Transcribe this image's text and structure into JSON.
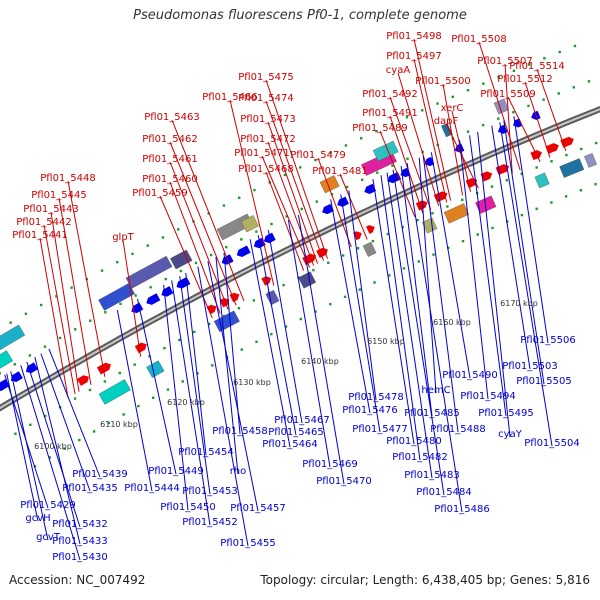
{
  "title": "Pseudomonas fluorescens Pf0-1, complete genome",
  "footer": {
    "accession": "Accession: NC_007492",
    "summary": "Topology: circular; Length: 6,438,405 bp; Genes: 5,816"
  },
  "colors": {
    "forward_strand": "#ee0000",
    "reverse_strand": "#0000ee",
    "backbone": "#888888",
    "top_label": "#cc0000",
    "bottom_label": "#0000cc"
  },
  "ticks": [
    "6100 kbp",
    "6110 kbp",
    "6120 kbp",
    "6130 kbp",
    "6140 kbp",
    "6150 kbp",
    "6160 kbp",
    "6170 kbp"
  ],
  "top_labels": [
    "Pfl01_5441",
    "Pfl01_5442",
    "Pfl01_5443",
    "Pfl01_5445",
    "Pfl01_5448",
    "glpT",
    "Pfl01_5459",
    "Pfl01_5460",
    "Pfl01_5461",
    "Pfl01_5462",
    "Pfl01_5463",
    "Pfl01_5466",
    "Pfl01_5468",
    "Pfl01_5471",
    "Pfl01_5472",
    "Pfl01_5473",
    "Pfl01_5474",
    "Pfl01_5475",
    "Pfl01_5479",
    "Pfl01_5481",
    "Pfl01_5489",
    "Pfl01_5491",
    "Pfl01_5492",
    "cyaA",
    "Pfl01_5497",
    "Pfl01_5498",
    "Pfl01_5500",
    "xerC",
    "dapF",
    "Pfl01_5507",
    "Pfl01_5508",
    "Pfl01_5509",
    "Pfl01_5512",
    "Pfl01_5514"
  ],
  "bottom_labels": [
    "Pfl01_5429",
    "gcvH",
    "gcvT",
    "Pfl01_5430",
    "Pfl01_5432",
    "Pfl01_5433",
    "Pfl01_5435",
    "Pfl01_5439",
    "Pfl01_5444",
    "Pfl01_5449",
    "Pfl01_5450",
    "Pfl01_5452",
    "Pfl01_5453",
    "Pfl01_5454",
    "Pfl01_5455",
    "Pfl01_5457",
    "rho",
    "Pfl01_5458",
    "Pfl01_5464",
    "Pfl01_5465",
    "Pfl01_5467",
    "Pfl01_5469",
    "Pfl01_5470",
    "Pfl01_5476",
    "Pfl01_5477",
    "Pfl01_5478",
    "Pfl01_5480",
    "Pfl01_5482",
    "Pfl01_5483",
    "Pfl01_5484",
    "Pfl01_5485",
    "Pfl01_5486",
    "hemC",
    "Pfl01_5488",
    "Pfl01_5490",
    "Pfl01_5494",
    "Pfl01_5495",
    "cyaY",
    "Pfl01_5503",
    "Pfl01_5504",
    "Pfl01_5505",
    "Pfl01_5506"
  ]
}
